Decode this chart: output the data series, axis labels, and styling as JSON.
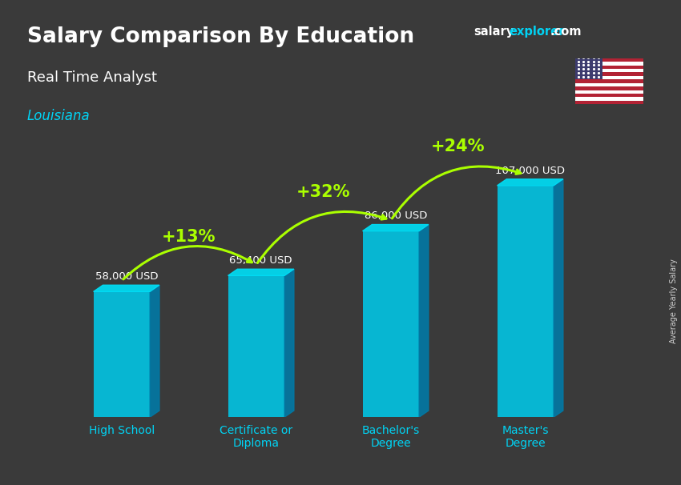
{
  "title": "Salary Comparison By Education",
  "subtitle": "Real Time Analyst",
  "location": "Louisiana",
  "categories": [
    "High School",
    "Certificate or\nDiploma",
    "Bachelor's\nDegree",
    "Master's\nDegree"
  ],
  "values": [
    58000,
    65400,
    86000,
    107000
  ],
  "value_labels": [
    "58,000 USD",
    "65,400 USD",
    "86,000 USD",
    "107,000 USD"
  ],
  "pct_changes": [
    "+13%",
    "+32%",
    "+24%"
  ],
  "bar_face_color": "#00c8e8",
  "bar_side_color": "#007ba8",
  "bar_top_color": "#00ddf5",
  "bg_color": "#3a3a3a",
  "title_color": "#ffffff",
  "subtitle_color": "#ffffff",
  "location_color": "#00d4f5",
  "value_label_color": "#ffffff",
  "pct_color": "#aaff00",
  "arrow_color": "#aaff00",
  "axis_label_color": "#00d4f5",
  "side_label": "Average Yearly Salary",
  "ylim": [
    0,
    130000
  ],
  "figsize": [
    8.5,
    6.06
  ],
  "dpi": 100
}
